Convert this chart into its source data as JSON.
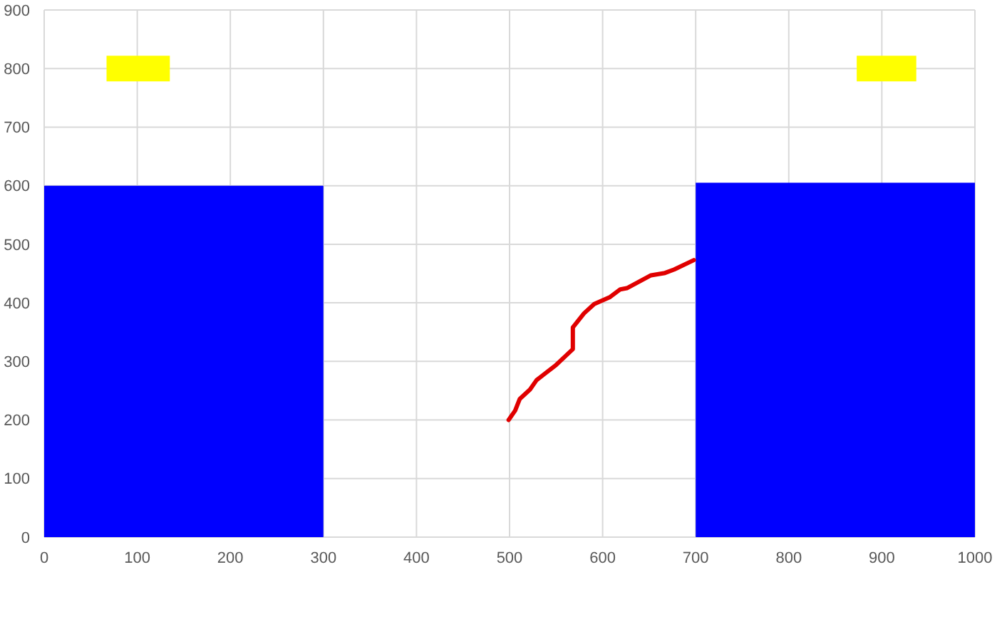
{
  "chart_data": {
    "type": "line",
    "xlim": [
      0,
      1000
    ],
    "ylim": [
      0,
      900
    ],
    "xticks": [
      0,
      100,
      200,
      300,
      400,
      500,
      600,
      700,
      800,
      900,
      1000
    ],
    "yticks": [
      0,
      100,
      200,
      300,
      400,
      500,
      600,
      700,
      800,
      900
    ],
    "grid": true,
    "series": [
      {
        "type": "area",
        "color": "#0000ff",
        "x": [
          0,
          300
        ],
        "values": [
          600,
          600
        ]
      },
      {
        "type": "area",
        "color": "#0000ff",
        "x": [
          700,
          1000
        ],
        "values": [
          605,
          605
        ]
      },
      {
        "type": "step",
        "color": "#ffff00",
        "x": [
          67,
          135
        ],
        "values": [
          800,
          800
        ]
      },
      {
        "type": "step",
        "color": "#ffff00",
        "x": [
          873,
          937
        ],
        "values": [
          800,
          800
        ]
      },
      {
        "color": "#e00000",
        "x": [
          499,
          506,
          511,
          522,
          529,
          550,
          568,
          568,
          580,
          591,
          608,
          619,
          626,
          652,
          667,
          677,
          698
        ],
        "values": [
          200,
          216,
          236,
          252,
          268,
          294,
          321,
          358,
          382,
          398,
          410,
          423,
          425,
          447,
          451,
          457,
          473
        ]
      }
    ]
  }
}
